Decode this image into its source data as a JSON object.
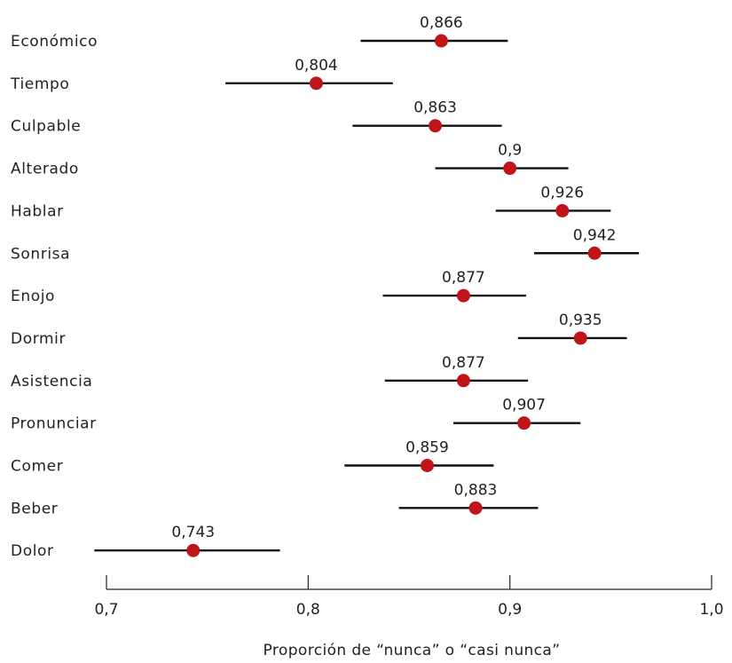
{
  "chart_data": {
    "type": "scatter",
    "xlabel": "Proporción de “nunca” o “casi nunca”",
    "xlim": [
      0.7,
      1.0
    ],
    "xticks": [
      0.7,
      0.8,
      0.9,
      1.0
    ],
    "xtick_labels": [
      "0,7",
      "0,8",
      "0,9",
      "1,0"
    ],
    "grid": false,
    "colors": {
      "point": "#c0141b",
      "interval": "#111111",
      "axis": "#222222"
    },
    "items": [
      {
        "category": "Económico",
        "value": 0.866,
        "label": "0,866",
        "low": 0.826,
        "high": 0.899
      },
      {
        "category": "Tiempo",
        "value": 0.804,
        "label": "0,804",
        "low": 0.759,
        "high": 0.842
      },
      {
        "category": "Culpable",
        "value": 0.863,
        "label": "0,863",
        "low": 0.822,
        "high": 0.896
      },
      {
        "category": "Alterado",
        "value": 0.9,
        "label": "0,9",
        "low": 0.863,
        "high": 0.929
      },
      {
        "category": "Hablar",
        "value": 0.926,
        "label": "0,926",
        "low": 0.893,
        "high": 0.95
      },
      {
        "category": "Sonrisa",
        "value": 0.942,
        "label": "0,942",
        "low": 0.912,
        "high": 0.964
      },
      {
        "category": "Enojo",
        "value": 0.877,
        "label": "0,877",
        "low": 0.837,
        "high": 0.908
      },
      {
        "category": "Dormir",
        "value": 0.935,
        "label": "0,935",
        "low": 0.904,
        "high": 0.958
      },
      {
        "category": "Asistencia",
        "value": 0.877,
        "label": "0,877",
        "low": 0.838,
        "high": 0.909
      },
      {
        "category": "Pronunciar",
        "value": 0.907,
        "label": "0,907",
        "low": 0.872,
        "high": 0.935
      },
      {
        "category": "Comer",
        "value": 0.859,
        "label": "0,859",
        "low": 0.818,
        "high": 0.892
      },
      {
        "category": "Beber",
        "value": 0.883,
        "label": "0,883",
        "low": 0.845,
        "high": 0.914
      },
      {
        "category": "Dolor",
        "value": 0.743,
        "label": "0,743",
        "low": 0.694,
        "high": 0.786
      }
    ]
  }
}
